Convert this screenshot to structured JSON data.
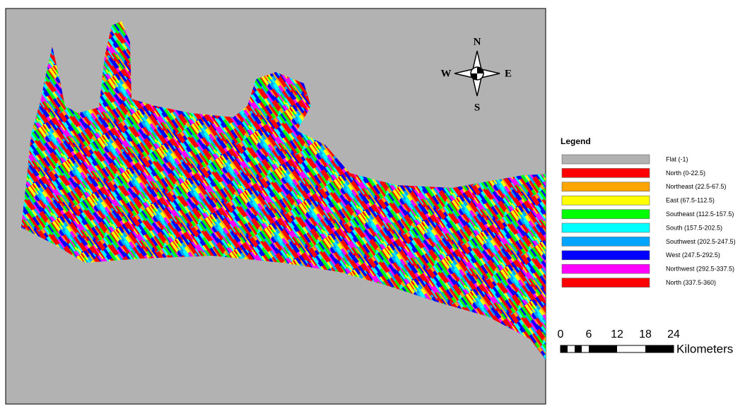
{
  "compass": {
    "north": "N",
    "south": "S",
    "west": "W",
    "east": "E"
  },
  "legend": {
    "title": "Legend",
    "items": [
      {
        "label": "Flat (-1)",
        "color": "#b2b2b2"
      },
      {
        "label": "North (0-22.5)",
        "color": "#ff0000"
      },
      {
        "label": "Northeast (22.5-67.5)",
        "color": "#ffa500"
      },
      {
        "label": "East (67.5-112.5)",
        "color": "#ffff00"
      },
      {
        "label": "Southeast (112.5-157.5)",
        "color": "#00ff00"
      },
      {
        "label": "South (157.5-202.5)",
        "color": "#00ffff"
      },
      {
        "label": "Southwest (202.5-247.5)",
        "color": "#00a5ff"
      },
      {
        "label": "West (247.5-292.5)",
        "color": "#0000ff"
      },
      {
        "label": "Northwest (292.5-337.5)",
        "color": "#ff00ff"
      },
      {
        "label": "North (337.5-360)",
        "color": "#ff0000"
      }
    ]
  },
  "scale_bar": {
    "ticks": [
      "0",
      "6",
      "12",
      "18",
      "24"
    ],
    "unit": "Kilometers"
  }
}
